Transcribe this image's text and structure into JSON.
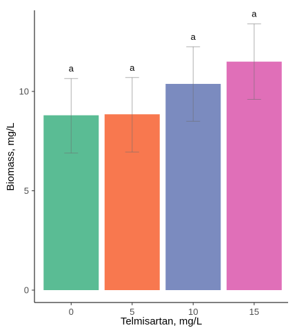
{
  "chart_data": {
    "type": "bar",
    "title": "",
    "xlabel": "Telmisartan, mg/L",
    "ylabel": "Biomass, mg/L",
    "categories": [
      "0",
      "5",
      "10",
      "15"
    ],
    "values": [
      8.8,
      8.85,
      10.38,
      11.5
    ],
    "error_low": [
      6.9,
      6.95,
      8.5,
      9.6
    ],
    "error_high": [
      10.65,
      10.7,
      12.25,
      13.4
    ],
    "significance": [
      "a",
      "a",
      "a",
      "a"
    ],
    "colors": [
      "#5abc94",
      "#f8784f",
      "#7b8bbf",
      "#e06fb8"
    ],
    "ylim": [
      -0.5,
      14
    ],
    "yticks": [
      0,
      5,
      10
    ],
    "grid": false,
    "legend": "none"
  }
}
